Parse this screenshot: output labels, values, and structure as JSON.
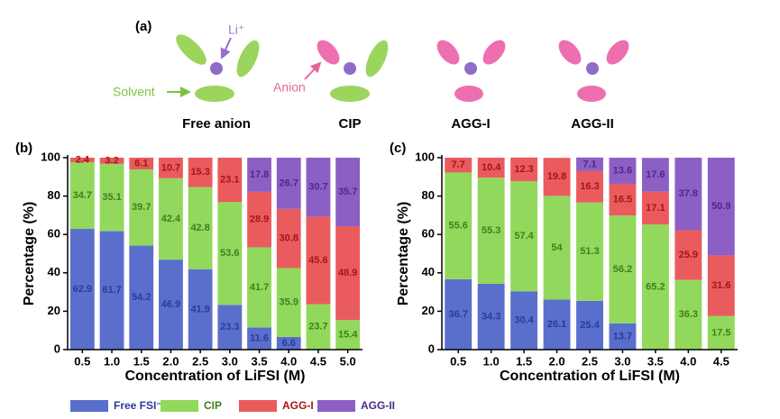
{
  "schematic": {
    "label": "(a)",
    "li_label": "Li⁺",
    "solvent_label": "Solvent",
    "anion_label": "Anion",
    "structures": [
      "Free anion",
      "CIP",
      "AGG-I",
      "AGG-II"
    ]
  },
  "chart_data": [
    {
      "type": "bar",
      "stacked": true,
      "label": "(b)",
      "y_label": "Percentage (%)",
      "x_label": "Concentration of LiFSI (M)",
      "categories": [
        "0.5",
        "1.0",
        "1.5",
        "2.0",
        "2.5",
        "3.0",
        "3.5",
        "4.0",
        "4.5",
        "5.0"
      ],
      "ylim": [
        0,
        100
      ],
      "yticks": [
        0,
        20,
        40,
        60,
        80,
        100
      ],
      "series": [
        {
          "name": "Free FSI⁻",
          "color": "#5a6fcc",
          "values": [
            62.9,
            61.7,
            54.2,
            46.9,
            41.9,
            23.3,
            11.6,
            6.6,
            0,
            0
          ]
        },
        {
          "name": "CIP",
          "color": "#92d85c",
          "values": [
            34.7,
            35.1,
            39.7,
            42.4,
            42.8,
            53.6,
            41.7,
            35.9,
            23.7,
            15.4
          ]
        },
        {
          "name": "AGG-I",
          "color": "#ea5b5e",
          "values": [
            2.4,
            3.2,
            6.1,
            10.7,
            15.3,
            23.1,
            28.9,
            30.8,
            45.6,
            48.9
          ]
        },
        {
          "name": "AGG-II",
          "color": "#8c5fc4",
          "values": [
            0,
            0,
            0,
            0,
            0,
            0,
            17.8,
            26.7,
            30.7,
            35.7
          ]
        }
      ]
    },
    {
      "type": "bar",
      "stacked": true,
      "label": "(c)",
      "y_label": "Percentage (%)",
      "x_label": "Concentration of LiFSI (M)",
      "categories": [
        "0.5",
        "1.0",
        "1.5",
        "2.0",
        "2.5",
        "3.0",
        "3.5",
        "4.0",
        "4.5"
      ],
      "ylim": [
        0,
        100
      ],
      "yticks": [
        0,
        20,
        40,
        60,
        80,
        100
      ],
      "series": [
        {
          "color": "#5a6fcc",
          "values": [
            36.7,
            34.3,
            30.4,
            26.1,
            25.4,
            13.7,
            0,
            0,
            0
          ]
        },
        {
          "color": "#92d85c",
          "values": [
            55.6,
            55.3,
            57.4,
            54,
            51.3,
            56.2,
            65.2,
            36.3,
            17.5
          ]
        },
        {
          "color": "#ea5b5e",
          "values": [
            7.7,
            10.4,
            12.3,
            19.8,
            16.3,
            16.5,
            17.1,
            25.9,
            31.6
          ]
        },
        {
          "color": "#8c5fc4",
          "values": [
            0,
            0,
            0,
            0,
            7.1,
            13.6,
            17.6,
            37.8,
            50.9
          ]
        }
      ]
    }
  ]
}
